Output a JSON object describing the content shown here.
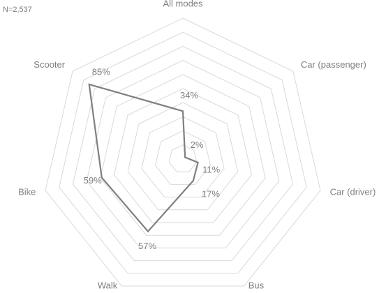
{
  "chart_data": {
    "type": "radar",
    "annotation": "N=2,537",
    "categories": [
      "All modes",
      "Car (passenger)",
      "Car (driver)",
      "Bus",
      "Walk",
      "Bike",
      "Scooter"
    ],
    "values": [
      34,
      2,
      11,
      17,
      57,
      59,
      85
    ],
    "value_labels": [
      "34%",
      "2%",
      "11%",
      "17%",
      "57%",
      "59%",
      "85%"
    ],
    "color": "#7f7f7f",
    "ylim": [
      0,
      100
    ],
    "yticks": [
      0,
      10,
      20,
      30,
      40,
      50,
      60,
      70,
      80,
      90,
      100
    ],
    "grid": true
  }
}
